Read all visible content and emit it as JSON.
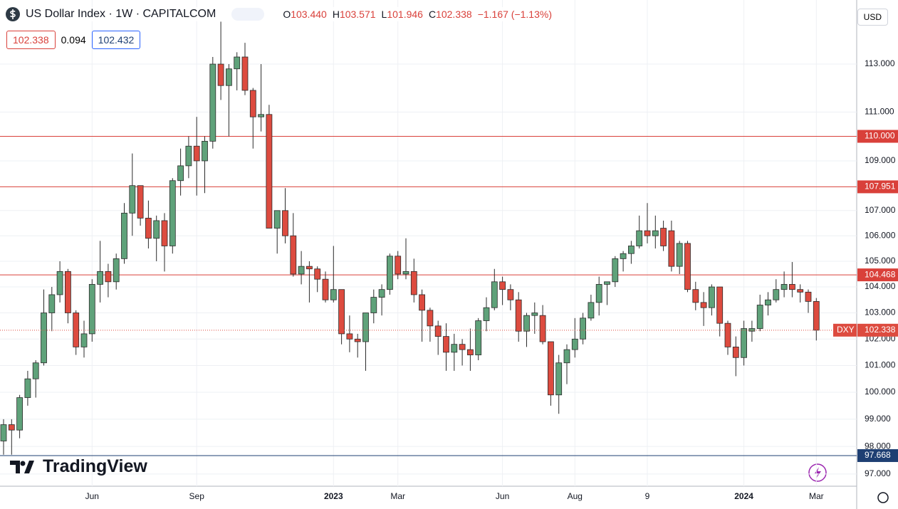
{
  "header": {
    "title": "US Dollar Index · 1W · CAPITALCOM",
    "ohlc": [
      {
        "key": "O",
        "value": "103.440"
      },
      {
        "key": "H",
        "value": "103.571"
      },
      {
        "key": "L",
        "value": "101.946"
      },
      {
        "key": "C",
        "value": "102.338"
      }
    ],
    "change": "−1.167 (−1.13%)",
    "bid": "102.338",
    "spread": "0.094",
    "ask": "102.432",
    "currency": "USD",
    "brand": "TradingView"
  },
  "chart_data": {
    "type": "candlestick",
    "up_color": "#5fa27a",
    "down_color": "#dd4b3f",
    "log_scale": true,
    "grid": true,
    "ylim": [
      96.56,
      115.73
    ],
    "yticks": [
      {
        "value": 97,
        "label": "97.000"
      },
      {
        "value": 98,
        "label": "98.000"
      },
      {
        "value": 99,
        "label": "99.000"
      },
      {
        "value": 100,
        "label": "100.000"
      },
      {
        "value": 101,
        "label": "101.000"
      },
      {
        "value": 102,
        "label": "102.000"
      },
      {
        "value": 103,
        "label": "103.000"
      },
      {
        "value": 104,
        "label": "104.000"
      },
      {
        "value": 105,
        "label": "105.000"
      },
      {
        "value": 106,
        "label": "106.000"
      },
      {
        "value": 107,
        "label": "107.000"
      },
      {
        "value": 109,
        "label": "109.000"
      },
      {
        "value": 111,
        "label": "111.000"
      },
      {
        "value": 113,
        "label": "113.000"
      }
    ],
    "levels": [
      {
        "value": 110,
        "label": "110.000",
        "color": "#d9403a"
      },
      {
        "value": 107.951,
        "color": "#d9403a"
      },
      {
        "value": 104.468,
        "color": "#d9403a"
      },
      {
        "value": 97.668,
        "color": "#1e3f73"
      }
    ],
    "last": {
      "symbol": "DXY",
      "value": 102.338
    },
    "categories": [
      null,
      null,
      null,
      null,
      null,
      null,
      null,
      null,
      null,
      null,
      null,
      "Jun",
      null,
      null,
      null,
      null,
      null,
      null,
      null,
      null,
      null,
      null,
      null,
      null,
      "Sep",
      null,
      null,
      null,
      null,
      null,
      null,
      null,
      null,
      null,
      null,
      null,
      null,
      null,
      null,
      null,
      null,
      "2023",
      null,
      null,
      null,
      null,
      null,
      null,
      null,
      "Mar",
      null,
      null,
      null,
      null,
      null,
      null,
      null,
      null,
      null,
      null,
      null,
      null,
      "Jun",
      null,
      null,
      null,
      null,
      null,
      null,
      null,
      null,
      "Aug",
      null,
      null,
      null,
      null,
      null,
      null,
      null,
      null,
      "9",
      null,
      null,
      null,
      null,
      null,
      null,
      null,
      null,
      null,
      null,
      null,
      "2024",
      null,
      null,
      null,
      null,
      null,
      null,
      null,
      null,
      "Mar"
    ],
    "open": [
      98.2,
      98.8,
      98.6,
      99.8,
      100.5,
      101.1,
      103.0,
      103.7,
      104.6,
      103.0,
      101.7,
      102.2,
      104.1,
      104.6,
      104.2,
      105.1,
      106.9,
      108.0,
      106.7,
      105.9,
      106.6,
      105.6,
      108.2,
      108.8,
      109.6,
      109.0,
      109.8,
      113.0,
      112.1,
      112.8,
      113.3,
      111.9,
      110.8,
      110.9,
      106.3,
      107.0,
      106.0,
      104.5,
      104.8,
      104.7,
      104.3,
      103.5,
      103.9,
      102.2,
      102.0,
      101.9,
      103.0,
      103.6,
      103.9,
      105.2,
      104.5,
      104.6,
      103.7,
      103.1,
      102.5,
      102.1,
      101.5,
      101.8,
      101.6,
      101.4,
      102.7,
      103.2,
      104.2,
      103.9,
      103.5,
      102.3,
      102.9,
      102.9,
      101.9,
      99.9,
      101.1,
      101.6,
      102.0,
      102.8,
      103.4,
      104.1,
      104.2,
      105.1,
      105.3,
      105.6,
      106.2,
      106.0,
      106.3,
      106.2,
      104.8,
      105.7,
      103.9,
      103.4,
      103.2,
      104.0,
      102.6,
      101.7,
      101.3,
      102.3,
      102.4,
      103.3,
      103.5,
      103.9,
      104.1,
      103.9,
      103.8,
      103.44
    ],
    "high": [
      99.0,
      99.0,
      99.9,
      100.8,
      101.2,
      103.9,
      104.0,
      105.0,
      104.7,
      103.1,
      102.7,
      104.3,
      105.8,
      104.9,
      105.3,
      107.3,
      109.3,
      108.0,
      107.4,
      106.8,
      106.9,
      108.3,
      109.5,
      110.0,
      110.8,
      110.0,
      113.3,
      114.8,
      113.0,
      113.5,
      113.9,
      112.0,
      113.0,
      111.3,
      107.0,
      107.9,
      106.9,
      105.4,
      105.0,
      104.8,
      104.6,
      105.6,
      103.9,
      102.9,
      102.2,
      103.0,
      103.9,
      104.1,
      105.3,
      105.4,
      105.9,
      105.1,
      103.9,
      103.2,
      102.7,
      102.6,
      102.2,
      102.0,
      102.4,
      102.8,
      103.6,
      104.7,
      104.4,
      104.1,
      103.8,
      103.0,
      103.4,
      103.3,
      101.9,
      101.4,
      101.8,
      102.8,
      103.0,
      103.7,
      104.4,
      104.2,
      105.2,
      105.4,
      105.8,
      106.8,
      107.3,
      106.8,
      106.6,
      106.6,
      105.8,
      105.8,
      104.2,
      103.8,
      104.1,
      104.0,
      102.7,
      102.1,
      102.7,
      102.7,
      103.7,
      103.8,
      104.3,
      104.6,
      104.97,
      104.1,
      103.9,
      103.571
    ],
    "low": [
      97.7,
      97.7,
      98.3,
      99.5,
      99.8,
      101.0,
      102.3,
      103.4,
      102.6,
      101.4,
      101.3,
      101.9,
      103.4,
      103.6,
      103.9,
      104.9,
      106.0,
      106.4,
      105.5,
      105.0,
      104.6,
      105.3,
      107.6,
      108.3,
      107.6,
      107.7,
      109.5,
      111.5,
      110.0,
      111.9,
      111.7,
      109.5,
      110.2,
      106.3,
      105.3,
      105.7,
      104.4,
      104.1,
      103.4,
      103.8,
      103.4,
      103.4,
      101.8,
      101.5,
      101.3,
      100.8,
      102.6,
      102.9,
      103.7,
      104.3,
      104.3,
      103.4,
      101.9,
      101.9,
      101.4,
      100.8,
      100.8,
      101.0,
      100.8,
      101.2,
      102.3,
      103.1,
      103.3,
      103.1,
      101.9,
      101.7,
      102.2,
      101.8,
      99.5,
      99.2,
      100.3,
      101.3,
      101.8,
      102.7,
      102.9,
      103.3,
      104.0,
      104.6,
      104.9,
      105.5,
      105.7,
      105.5,
      105.4,
      104.6,
      104.5,
      103.8,
      103.1,
      102.5,
      102.9,
      102.1,
      101.4,
      100.6,
      101.0,
      101.9,
      102.3,
      102.9,
      103.4,
      103.6,
      103.6,
      103.4,
      103.0,
      101.946
    ],
    "close": [
      98.8,
      98.6,
      99.8,
      100.5,
      101.1,
      103.0,
      103.7,
      104.6,
      103.0,
      101.7,
      102.2,
      104.1,
      104.6,
      104.2,
      105.1,
      106.9,
      108.0,
      106.7,
      105.9,
      106.6,
      105.6,
      108.2,
      108.8,
      109.6,
      109.0,
      109.8,
      113.0,
      112.1,
      112.8,
      113.3,
      111.9,
      110.8,
      110.9,
      106.3,
      107.0,
      106.0,
      104.5,
      104.8,
      104.7,
      104.3,
      103.5,
      103.9,
      102.2,
      102.0,
      101.9,
      103.0,
      103.6,
      103.9,
      105.2,
      104.5,
      104.6,
      103.7,
      103.1,
      102.5,
      102.1,
      101.5,
      101.8,
      101.6,
      101.4,
      102.7,
      103.2,
      104.2,
      103.9,
      103.5,
      102.3,
      102.9,
      103.0,
      101.9,
      99.9,
      101.1,
      101.6,
      102.0,
      102.8,
      103.4,
      104.1,
      104.2,
      105.1,
      105.3,
      105.6,
      106.2,
      106.0,
      106.2,
      105.6,
      104.8,
      105.7,
      103.9,
      103.4,
      103.2,
      104.0,
      102.6,
      101.7,
      101.3,
      102.4,
      102.4,
      103.3,
      103.5,
      103.9,
      104.1,
      103.9,
      103.8,
      103.44,
      102.338
    ]
  }
}
